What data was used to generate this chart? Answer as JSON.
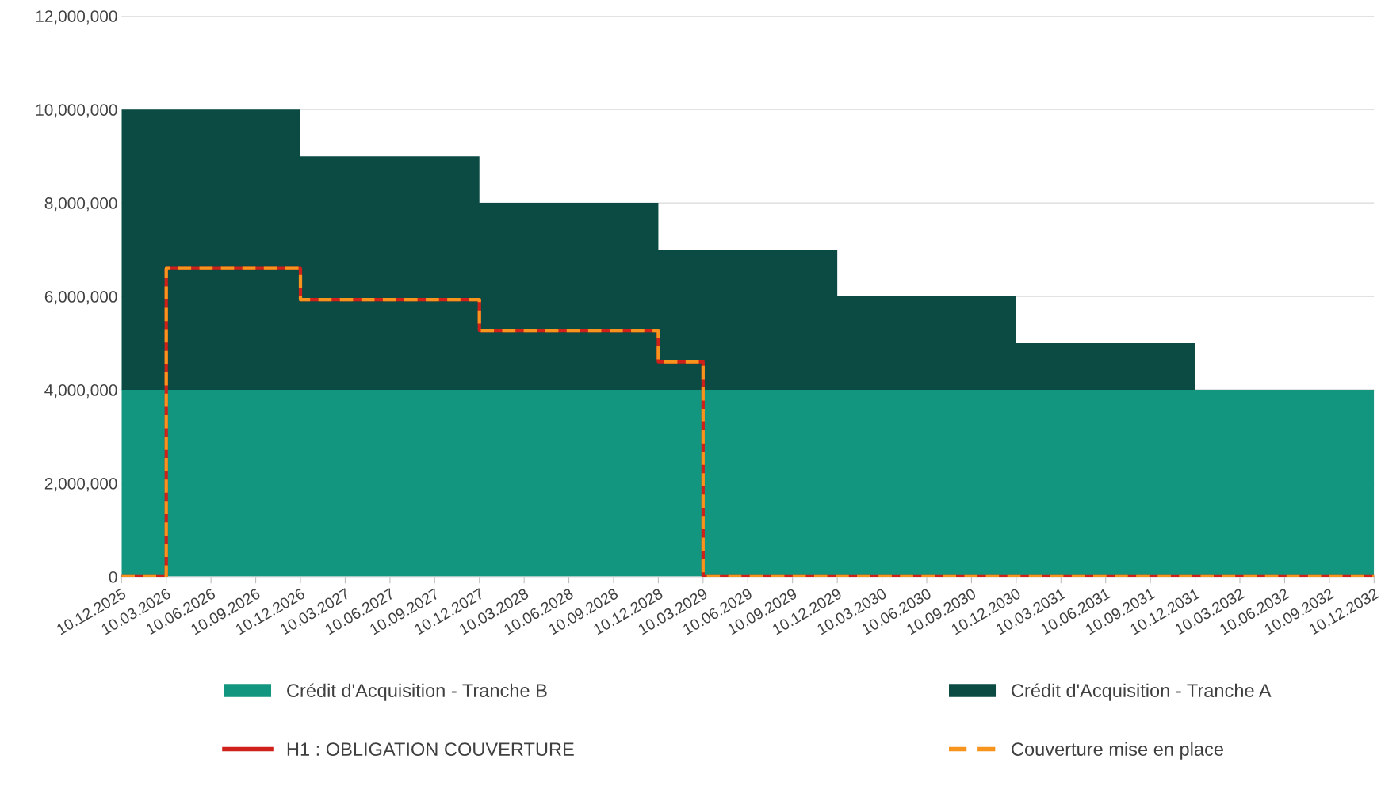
{
  "chart_data": {
    "type": "area",
    "stacked": true,
    "grid": "y",
    "legend": "bottom",
    "categories": [
      "10.12.2025",
      "10.03.2026",
      "10.06.2026",
      "10.09.2026",
      "10.12.2026",
      "10.03.2027",
      "10.06.2027",
      "10.09.2027",
      "10.12.2027",
      "10.03.2028",
      "10.06.2028",
      "10.09.2028",
      "10.12.2028",
      "10.03.2029",
      "10.06.2029",
      "10.09.2029",
      "10.12.2029",
      "10.03.2030",
      "10.06.2030",
      "10.09.2030",
      "10.12.2030",
      "10.03.2031",
      "10.06.2031",
      "10.09.2031",
      "10.12.2031",
      "10.03.2032",
      "10.06.2032",
      "10.09.2032",
      "10.12.2032"
    ],
    "ylim": [
      0,
      12000000
    ],
    "yticks": [
      {
        "value": 0,
        "label": "0"
      },
      {
        "value": 2000000,
        "label": "2,000,000"
      },
      {
        "value": 4000000,
        "label": "4,000,000"
      },
      {
        "value": 6000000,
        "label": "6,000,000"
      },
      {
        "value": 8000000,
        "label": "8,000,000"
      },
      {
        "value": 10000000,
        "label": "10,000,000"
      },
      {
        "value": 12000000,
        "label": "12,000,000"
      }
    ],
    "series": [
      {
        "name": "Crédit d'Acquisition - Tranche B",
        "color": "#12967f",
        "values": [
          4000000,
          4000000,
          4000000,
          4000000,
          4000000,
          4000000,
          4000000,
          4000000,
          4000000,
          4000000,
          4000000,
          4000000,
          4000000,
          4000000,
          4000000,
          4000000,
          4000000,
          4000000,
          4000000,
          4000000,
          4000000,
          4000000,
          4000000,
          4000000,
          4000000,
          4000000,
          4000000,
          4000000,
          4000000
        ]
      },
      {
        "name": "Crédit d'Acquisition - Tranche A",
        "color": "#0b4b43",
        "values": [
          6000000,
          6000000,
          6000000,
          6000000,
          5000000,
          5000000,
          5000000,
          5000000,
          4000000,
          4000000,
          4000000,
          4000000,
          3000000,
          3000000,
          3000000,
          3000000,
          2000000,
          2000000,
          2000000,
          2000000,
          1000000,
          1000000,
          1000000,
          1000000,
          0,
          0,
          0,
          0,
          0
        ]
      },
      {
        "name": "H1 : OBLIGATION COUVERTURE",
        "type": "step",
        "line_style": "solid",
        "color": "#d0201a",
        "values": [
          0,
          6600000,
          6600000,
          6600000,
          5930000,
          5930000,
          5930000,
          5930000,
          5270000,
          5270000,
          5270000,
          5270000,
          4600000,
          0,
          0,
          0,
          0,
          0,
          0,
          0,
          0,
          0,
          0,
          0,
          0,
          0,
          0,
          0,
          0
        ]
      },
      {
        "name": "Couverture mise en place",
        "type": "step",
        "line_style": "dashed",
        "color": "#f7941d",
        "values": [
          0,
          6600000,
          6600000,
          6600000,
          5930000,
          5930000,
          5930000,
          5930000,
          5270000,
          5270000,
          5270000,
          5270000,
          4600000,
          0,
          0,
          0,
          0,
          0,
          0,
          0,
          0,
          0,
          0,
          0,
          0,
          0,
          0,
          0,
          0
        ]
      }
    ]
  }
}
